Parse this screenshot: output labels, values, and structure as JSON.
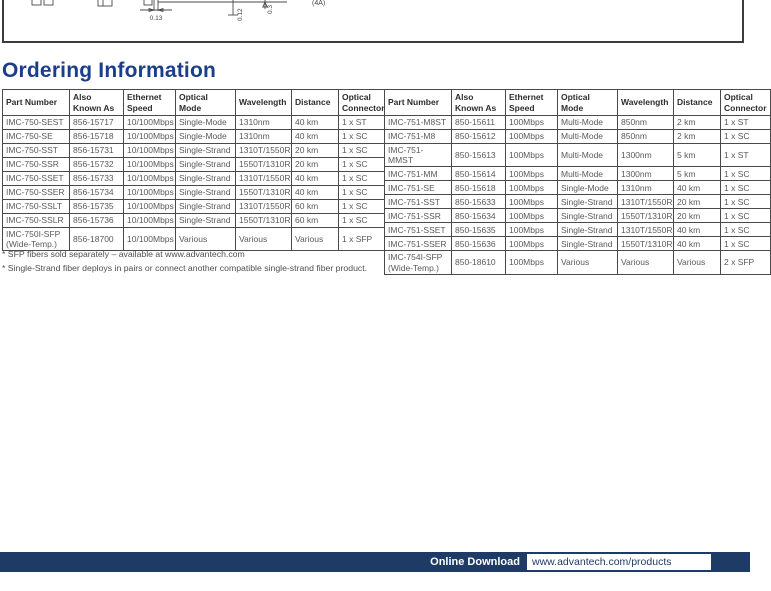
{
  "page": {
    "heading": "Ordering Information",
    "accent_color": "#1a3e8c",
    "footer_bar_color": "#1e3b66"
  },
  "drawing": {
    "dim_a": "0.13",
    "dim_b": "0.12",
    "dim_c": "0.3",
    "callout": "(4A)"
  },
  "tables": {
    "left": {
      "headers": [
        "Part Number",
        "Also Known As",
        "Ethernet Speed",
        "Optical Mode",
        "Wavelength",
        "Distance",
        "Optical Connector"
      ],
      "rows": [
        [
          "IMC-750-SEST",
          "856-15717",
          "10/100Mbps",
          "Single-Mode",
          "1310nm",
          "40 km",
          "1 x ST"
        ],
        [
          "IMC-750-SE",
          "856-15718",
          "10/100Mbps",
          "Single-Mode",
          "1310nm",
          "40 km",
          "1 x SC"
        ],
        [
          "IMC-750-SST",
          "856-15731",
          "10/100Mbps",
          "Single-Strand",
          "1310T/1550R",
          "20 km",
          "1 x SC"
        ],
        [
          "IMC-750-SSR",
          "856-15732",
          "10/100Mbps",
          "Single-Strand",
          "1550T/1310R",
          "20 km",
          "1 x SC"
        ],
        [
          "IMC-750-SSET",
          "856-15733",
          "10/100Mbps",
          "Single-Strand",
          "1310T/1550R",
          "40 km",
          "1 x SC"
        ],
        [
          "IMC-750-SSER",
          "856-15734",
          "10/100Mbps",
          "Single-Strand",
          "1550T/1310R",
          "40 km",
          "1 x SC"
        ],
        [
          "IMC-750-SSLT",
          "856-15735",
          "10/100Mbps",
          "Single-Strand",
          "1310T/1550R",
          "60 km",
          "1 x SC"
        ],
        [
          "IMC-750-SSLR",
          "856-15736",
          "10/100Mbps",
          "Single-Strand",
          "1550T/1310R",
          "60 km",
          "1 x SC"
        ],
        [
          "IMC-750I-SFP (Wide-Temp.)",
          "856-18700",
          "10/100Mbps",
          "Various",
          "Various",
          "Various",
          "1 x SFP"
        ]
      ]
    },
    "right": {
      "headers": [
        "Part Number",
        "Also Known As",
        "Ethernet Speed",
        "Optical Mode",
        "Wavelength",
        "Distance",
        "Optical Connector"
      ],
      "rows": [
        [
          "IMC-751-M8ST",
          "850-15611",
          "100Mbps",
          "Multi-Mode",
          "850nm",
          "2 km",
          "1 x ST"
        ],
        [
          "IMC-751-M8",
          "850-15612",
          "100Mbps",
          "Multi-Mode",
          "850nm",
          "2 km",
          "1 x SC"
        ],
        [
          "IMC-751-MMST",
          "850-15613",
          "100Mbps",
          "Multi-Mode",
          "1300nm",
          "5 km",
          "1 x ST"
        ],
        [
          "IMC-751-MM",
          "850-15614",
          "100Mbps",
          "Multi-Mode",
          "1300nm",
          "5 km",
          "1 x SC"
        ],
        [
          "IMC-751-SE",
          "850-15618",
          "100Mbps",
          "Single-Mode",
          "1310nm",
          "40 km",
          "1 x SC"
        ],
        [
          "IMC-751-SST",
          "850-15633",
          "100Mbps",
          "Single-Strand",
          "1310T/1550R",
          "20 km",
          "1 x SC"
        ],
        [
          "IMC-751-SSR",
          "850-15634",
          "100Mbps",
          "Single-Strand",
          "1550T/1310R",
          "20 km",
          "1 x SC"
        ],
        [
          "IMC-751-SSET",
          "850-15635",
          "100Mbps",
          "Single-Strand",
          "1310T/1550R",
          "40 km",
          "1 x SC"
        ],
        [
          "IMC-751-SSER",
          "850-15636",
          "100Mbps",
          "Single-Strand",
          "1550T/1310R",
          "40 km",
          "1 x SC"
        ],
        [
          "IMC-754I-SFP (Wide-Temp.)",
          "850-18610",
          "100Mbps",
          "Various",
          "Various",
          "Various",
          "2 x SFP"
        ]
      ]
    }
  },
  "footnotes": [
    "* SFP fibers sold separately – available at www.advantech.com",
    "* Single-Strand fiber deploys in pairs or connect another compatible single-strand fiber product."
  ],
  "footer": {
    "label": "Online Download",
    "url": "www.advantech.com/products"
  }
}
